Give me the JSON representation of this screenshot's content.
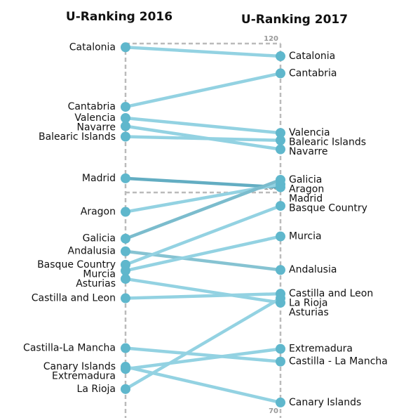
{
  "chart_data": {
    "type": "slope",
    "columns": [
      "U-Ranking 2016",
      "U-Ranking 2017"
    ],
    "ylim": [
      70,
      120
    ],
    "yticks": [
      70,
      100,
      120
    ],
    "dot_color": "#5fb7cc",
    "regions": [
      {
        "labels": [
          "Catalonia",
          "Catalonia"
        ],
        "values": [
          119.5,
          118.3
        ],
        "color": "#93d2e2"
      },
      {
        "labels": [
          "Cantabria",
          "Cantabria"
        ],
        "values": [
          111.5,
          116.0
        ],
        "color": "#93d2e2"
      },
      {
        "labels": [
          "Valencia",
          "Valencia"
        ],
        "values": [
          110.0,
          108.0
        ],
        "color": "#93d2e2"
      },
      {
        "labels": [
          "Navarre",
          "Navarre"
        ],
        "values": [
          108.9,
          105.8
        ],
        "color": "#93d2e2"
      },
      {
        "labels": [
          "Balearic Islands",
          "Balearic Islands"
        ],
        "values": [
          107.5,
          107.0
        ],
        "color": "#93d2e2"
      },
      {
        "labels": [
          "Madrid",
          "Madrid"
        ],
        "values": [
          101.9,
          100.7
        ],
        "color": "#63adc2"
      },
      {
        "labels": [
          "Aragon",
          "Aragon"
        ],
        "values": [
          97.4,
          101.1
        ],
        "color": "#93d2e2"
      },
      {
        "labels": [
          "Galicia",
          "Galicia"
        ],
        "values": [
          93.8,
          101.7
        ],
        "color": "#7bbccd"
      },
      {
        "labels": [
          "Andalusia",
          "Andalusia"
        ],
        "values": [
          92.1,
          89.6
        ],
        "color": "#86c3d2"
      },
      {
        "labels": [
          "Basque Country",
          "Basque Country"
        ],
        "values": [
          90.3,
          98.2
        ],
        "color": "#93d2e2"
      },
      {
        "labels": [
          "Murcia",
          "Murcia"
        ],
        "values": [
          89.5,
          94.1
        ],
        "color": "#93d2e2"
      },
      {
        "labels": [
          "Asturias",
          "Asturias"
        ],
        "values": [
          88.4,
          85.2
        ],
        "color": "#93d2e2"
      },
      {
        "labels": [
          "Castilla and Leon",
          "Castilla and Leon"
        ],
        "values": [
          85.8,
          86.4
        ],
        "color": "#93d2e2"
      },
      {
        "labels": [
          "Castilla-La Mancha",
          "Castilla - La Mancha"
        ],
        "values": [
          79.1,
          77.3
        ],
        "color": "#93d2e2"
      },
      {
        "labels": [
          "Canary Islands",
          "Canary Islands"
        ],
        "values": [
          76.6,
          71.8
        ],
        "color": "#93d2e2"
      },
      {
        "labels": [
          "Extremadura",
          "Extremadura"
        ],
        "values": [
          76.3,
          79.0
        ],
        "color": "#93d2e2"
      },
      {
        "labels": [
          "La Rioja",
          "La Rioja"
        ],
        "values": [
          73.6,
          85.8
        ],
        "color": "#93d2e2"
      }
    ]
  }
}
